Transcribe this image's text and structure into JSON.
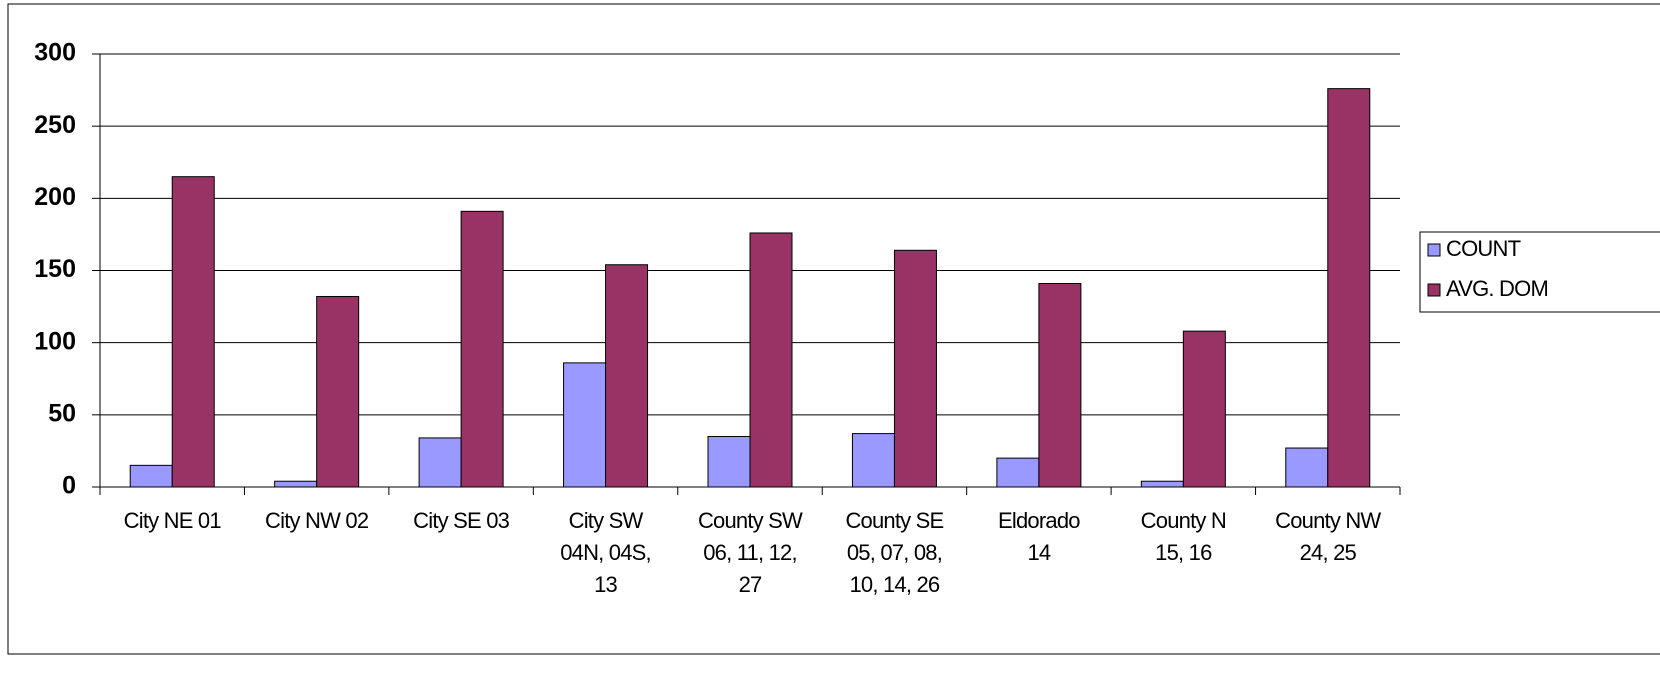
{
  "chart_data": {
    "type": "bar",
    "categories": [
      "City NE 01",
      "City NW 02",
      "City SE 03",
      "City SW\n04N, 04S,\n13",
      "County SW\n06, 11, 12,\n27",
      "County SE\n05, 07, 08,\n10, 14, 26",
      "Eldorado\n14",
      "County N\n15, 16",
      "County NW\n24, 25"
    ],
    "series": [
      {
        "name": "COUNT",
        "color": "#9999ff",
        "values": [
          15,
          4,
          34,
          86,
          35,
          37,
          20,
          4,
          27
        ]
      },
      {
        "name": "AVG. DOM",
        "color": "#993366",
        "values": [
          215,
          132,
          191,
          154,
          176,
          164,
          141,
          108,
          276
        ]
      }
    ],
    "ylim": [
      0,
      300
    ],
    "yticks": [
      0,
      50,
      100,
      150,
      200,
      250,
      300
    ],
    "grid": true,
    "legend": "right"
  }
}
